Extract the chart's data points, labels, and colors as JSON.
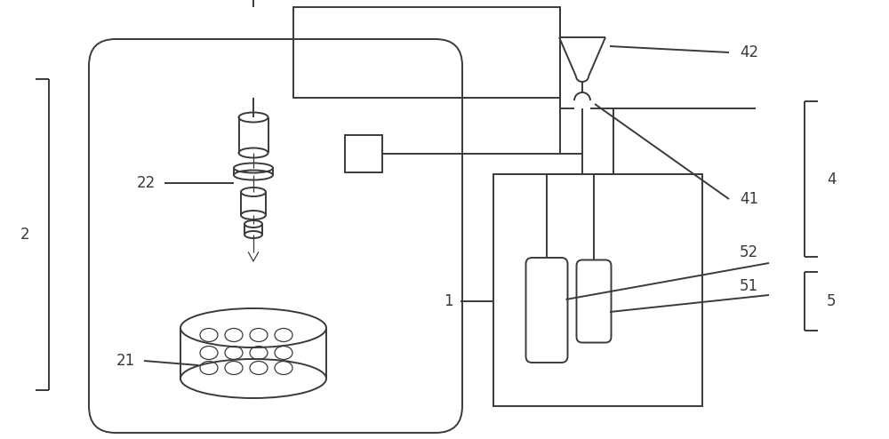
{
  "bg_color": "#ffffff",
  "lc": "#3a3a3a",
  "lw": 1.4,
  "lw_thin": 0.9,
  "label_fs": 12,
  "label_c": "#3a3a3a",
  "figsize": [
    10.0,
    4.94
  ],
  "dpi": 100,
  "xlim": [
    0,
    10
  ],
  "ylim": [
    0,
    4.94
  ]
}
